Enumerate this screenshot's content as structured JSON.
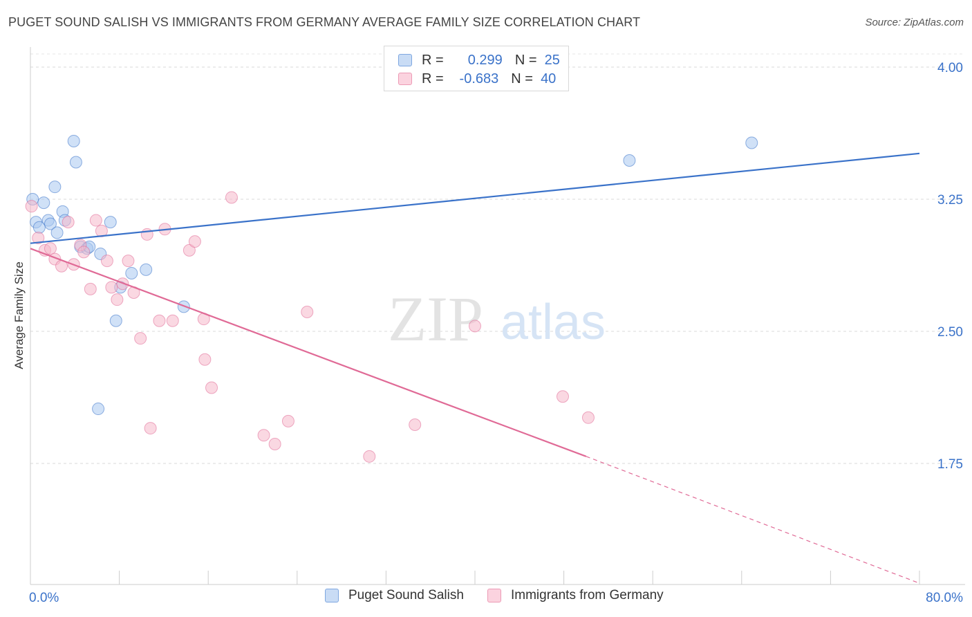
{
  "header": {
    "title": "PUGET SOUND SALISH VS IMMIGRANTS FROM GERMANY AVERAGE FAMILY SIZE CORRELATION CHART",
    "source": "Source: ZipAtlas.com"
  },
  "watermark": {
    "zip": "ZIP",
    "atlas": "atlas"
  },
  "legend": {
    "rows": [
      {
        "r_label": "R =",
        "r_value": "0.299",
        "n_label": "N =",
        "n_value": "25",
        "color": "#a9c8f0"
      },
      {
        "r_label": "R =",
        "r_value": "-0.683",
        "n_label": "N =",
        "n_value": "40",
        "color": "#f5b8cb"
      }
    ]
  },
  "bottom_legend": {
    "items": [
      {
        "label": "Puget Sound Salish",
        "color": "#a9c8f0"
      },
      {
        "label": "Immigrants from Germany",
        "color": "#f5b8cb"
      }
    ]
  },
  "chart_data": {
    "type": "scatter",
    "title": "PUGET SOUND SALISH VS IMMIGRANTS FROM GERMANY AVERAGE FAMILY SIZE CORRELATION CHART",
    "xlabel": "",
    "ylabel": "Average Family Size",
    "xlim": [
      0,
      80
    ],
    "ylim": [
      1.0,
      4.2
    ],
    "x_tick_labels": [
      "0.0%",
      "80.0%"
    ],
    "y_ticks": [
      1.75,
      2.5,
      3.25,
      4.0
    ],
    "y_tick_labels": [
      "1.75",
      "2.50",
      "3.25",
      "4.00"
    ],
    "grid": true,
    "legend_position": "top-center",
    "series": [
      {
        "name": "Puget Sound Salish",
        "color": "#3a72c9",
        "fill": "#a9c8f0",
        "trend": {
          "x": [
            0,
            80
          ],
          "y": [
            3.0,
            3.51
          ]
        },
        "points": [
          {
            "x": 0.2,
            "y": 3.25
          },
          {
            "x": 0.5,
            "y": 3.12
          },
          {
            "x": 0.8,
            "y": 3.09
          },
          {
            "x": 1.2,
            "y": 3.23
          },
          {
            "x": 1.6,
            "y": 3.13
          },
          {
            "x": 1.8,
            "y": 3.11
          },
          {
            "x": 2.2,
            "y": 3.32
          },
          {
            "x": 2.4,
            "y": 3.06
          },
          {
            "x": 2.9,
            "y": 3.18
          },
          {
            "x": 3.1,
            "y": 3.13
          },
          {
            "x": 3.9,
            "y": 3.58
          },
          {
            "x": 4.1,
            "y": 3.46
          },
          {
            "x": 4.5,
            "y": 2.98
          },
          {
            "x": 5.1,
            "y": 2.97
          },
          {
            "x": 5.3,
            "y": 2.98
          },
          {
            "x": 6.3,
            "y": 2.94
          },
          {
            "x": 6.1,
            "y": 2.06
          },
          {
            "x": 7.2,
            "y": 3.12
          },
          {
            "x": 7.7,
            "y": 2.56
          },
          {
            "x": 8.1,
            "y": 2.75
          },
          {
            "x": 9.1,
            "y": 2.83
          },
          {
            "x": 10.4,
            "y": 2.85
          },
          {
            "x": 13.8,
            "y": 2.64
          },
          {
            "x": 53.9,
            "y": 3.47
          },
          {
            "x": 64.9,
            "y": 3.57
          }
        ]
      },
      {
        "name": "Immigrants from Germany",
        "color": "#e06a96",
        "fill": "#f5b8cb",
        "trend": {
          "x": [
            0,
            50
          ],
          "y": [
            2.97,
            1.79
          ]
        },
        "trend_dashed": {
          "x": [
            50,
            80
          ],
          "y": [
            1.79,
            1.07
          ]
        },
        "points": [
          {
            "x": 0.1,
            "y": 3.21
          },
          {
            "x": 0.7,
            "y": 3.03
          },
          {
            "x": 1.3,
            "y": 2.96
          },
          {
            "x": 1.8,
            "y": 2.97
          },
          {
            "x": 2.2,
            "y": 2.91
          },
          {
            "x": 2.8,
            "y": 2.87
          },
          {
            "x": 3.4,
            "y": 3.12
          },
          {
            "x": 3.9,
            "y": 2.88
          },
          {
            "x": 4.5,
            "y": 2.99
          },
          {
            "x": 4.8,
            "y": 2.95
          },
          {
            "x": 5.4,
            "y": 2.74
          },
          {
            "x": 5.9,
            "y": 3.13
          },
          {
            "x": 6.4,
            "y": 3.07
          },
          {
            "x": 6.9,
            "y": 2.9
          },
          {
            "x": 7.3,
            "y": 2.75
          },
          {
            "x": 7.8,
            "y": 2.68
          },
          {
            "x": 8.3,
            "y": 2.77
          },
          {
            "x": 8.8,
            "y": 2.9
          },
          {
            "x": 9.3,
            "y": 2.72
          },
          {
            "x": 9.9,
            "y": 2.46
          },
          {
            "x": 10.5,
            "y": 3.05
          },
          {
            "x": 10.8,
            "y": 1.95
          },
          {
            "x": 11.6,
            "y": 2.56
          },
          {
            "x": 12.1,
            "y": 3.08
          },
          {
            "x": 12.8,
            "y": 2.56
          },
          {
            "x": 14.3,
            "y": 2.96
          },
          {
            "x": 14.8,
            "y": 3.01
          },
          {
            "x": 15.6,
            "y": 2.57
          },
          {
            "x": 15.7,
            "y": 2.34
          },
          {
            "x": 16.3,
            "y": 2.18
          },
          {
            "x": 18.1,
            "y": 3.26
          },
          {
            "x": 21.0,
            "y": 1.91
          },
          {
            "x": 22.0,
            "y": 1.86
          },
          {
            "x": 23.2,
            "y": 1.99
          },
          {
            "x": 24.9,
            "y": 2.61
          },
          {
            "x": 30.5,
            "y": 1.79
          },
          {
            "x": 34.6,
            "y": 1.97
          },
          {
            "x": 40.0,
            "y": 2.53
          },
          {
            "x": 47.9,
            "y": 2.13
          },
          {
            "x": 50.2,
            "y": 2.01
          }
        ]
      }
    ]
  }
}
